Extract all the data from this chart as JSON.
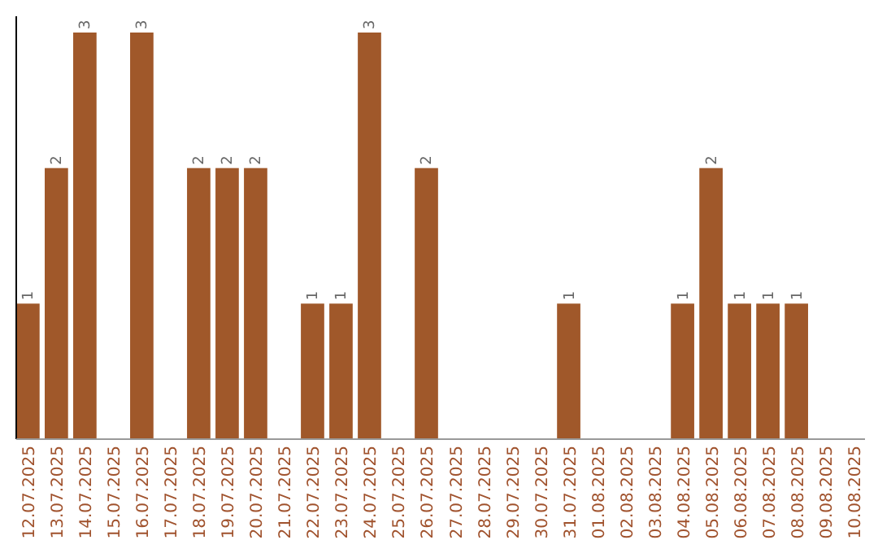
{
  "chart_data": {
    "type": "bar",
    "categories": [
      "12.07.2025",
      "13.07.2025",
      "14.07.2025",
      "15.07.2025",
      "16.07.2025",
      "17.07.2025",
      "18.07.2025",
      "19.07.2025",
      "20.07.2025",
      "21.07.2025",
      "22.07.2025",
      "23.07.2025",
      "24.07.2025",
      "25.07.2025",
      "26.07.2025",
      "27.07.2025",
      "28.07.2025",
      "29.07.2025",
      "30.07.2025",
      "31.07.2025",
      "01.08.2025",
      "02.08.2025",
      "03.08.2025",
      "04.08.2025",
      "05.08.2025",
      "06.08.2025",
      "07.08.2025",
      "08.08.2025",
      "09.08.2025",
      "10.08.2025"
    ],
    "values": [
      1,
      2,
      3,
      0,
      3,
      0,
      2,
      2,
      2,
      0,
      1,
      1,
      3,
      0,
      2,
      0,
      0,
      0,
      0,
      1,
      0,
      0,
      0,
      1,
      2,
      1,
      1,
      1,
      0,
      0
    ],
    "value_labels": [
      "1",
      "2",
      "3",
      null,
      "3",
      null,
      "2",
      "2",
      "2",
      null,
      "1",
      "1",
      "3",
      null,
      "2",
      null,
      null,
      null,
      null,
      "1",
      null,
      null,
      null,
      "1",
      "2",
      "1",
      "1",
      "1",
      null,
      null
    ],
    "color": "#a0582a"
  }
}
